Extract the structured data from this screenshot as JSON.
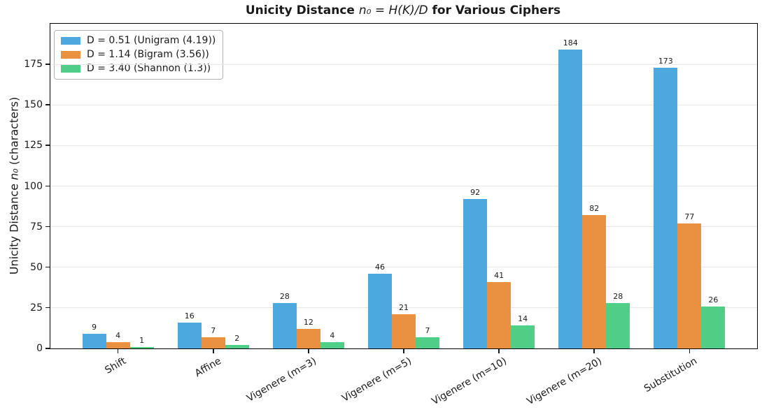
{
  "figure": {
    "title_prefix": "Unicity Distance ",
    "title_math": "n₀ = H(K)/D",
    "title_suffix": " for Various Ciphers",
    "ylabel_prefix": "Unicity Distance ",
    "ylabel_math": "n₀",
    "ylabel_suffix": " (characters)"
  },
  "chart_data": {
    "type": "bar",
    "title": "Unicity Distance n₀ = H(K)/D for Various Ciphers",
    "xlabel": "",
    "ylabel": "Unicity Distance n₀ (characters)",
    "categories": [
      "Shift",
      "Affine",
      "Vigenere (m=3)",
      "Vigenere (m=5)",
      "Vigenere (m=10)",
      "Vigenere (m=20)",
      "Substitution"
    ],
    "series": [
      {
        "name": "D = 0.51 (Unigram (4.19))",
        "color": "#4da8de",
        "values": [
          9,
          16,
          28,
          46,
          92,
          184,
          173
        ]
      },
      {
        "name": "D = 1.14 (Bigram (3.56))",
        "color": "#e99140",
        "values": [
          4,
          7,
          12,
          21,
          41,
          82,
          77
        ]
      },
      {
        "name": "D = 3.40 (Shannon (1.3))",
        "color": "#4ece86",
        "values": [
          1,
          2,
          4,
          7,
          14,
          28,
          26
        ]
      }
    ],
    "yticks": [
      0,
      25,
      50,
      75,
      100,
      125,
      150,
      175
    ],
    "ylim": [
      0,
      200
    ],
    "grid": true,
    "grid_axis": "y",
    "legend_position": "upper left",
    "value_labels": true,
    "colors": {
      "background": "#ffffff",
      "spine": "#000000",
      "grid": "#e7e7e7",
      "text": "#1a1a1a"
    }
  }
}
